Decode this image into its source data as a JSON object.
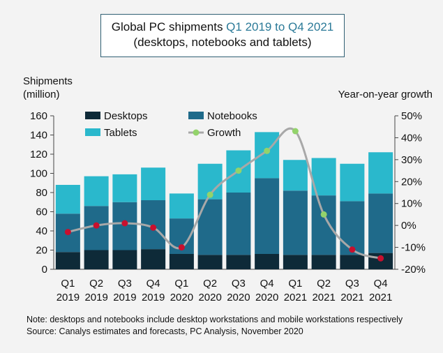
{
  "title": {
    "prefix": "Global PC shipments ",
    "highlight": "Q1 2019 to Q4 2021",
    "subtitle": "(desktops, notebooks and tablets)"
  },
  "notes": {
    "line1": "Note: desktops and notebooks include desktop workstations and mobile workstations respectively",
    "line2": "Source: Canalys estimates and forecasts, PC Analysis, November 2020"
  },
  "chart_data": {
    "type": "bar",
    "stacked": true,
    "categories": [
      [
        "Q1",
        "2019"
      ],
      [
        "Q2",
        "2019"
      ],
      [
        "Q3",
        "2019"
      ],
      [
        "Q4",
        "2019"
      ],
      [
        "Q1",
        "2020"
      ],
      [
        "Q2",
        "2020"
      ],
      [
        "Q3",
        "2020"
      ],
      [
        "Q4",
        "2020"
      ],
      [
        "Q1",
        "2021"
      ],
      [
        "Q2",
        "2021"
      ],
      [
        "Q3",
        "2021"
      ],
      [
        "Q4",
        "2021"
      ]
    ],
    "series": [
      {
        "name": "Desktops",
        "color": "#0e2a38",
        "values": [
          18,
          20,
          20,
          21,
          16,
          15,
          15,
          16,
          15,
          15,
          15,
          17
        ]
      },
      {
        "name": "Notebooks",
        "color": "#1f6a8a",
        "values": [
          40,
          46,
          50,
          51,
          37,
          58,
          65,
          79,
          67,
          62,
          56,
          62
        ]
      },
      {
        "name": "Tablets",
        "color": "#2ab8cc",
        "values": [
          30,
          31,
          29,
          34,
          26,
          37,
          44,
          48,
          32,
          39,
          39,
          43
        ]
      }
    ],
    "growth": {
      "name": "Growth",
      "line_color": "#a8a8a8",
      "marker_actual": "#c8102e",
      "marker_forecast": "#93d36b",
      "forecast_indices": [
        5,
        6,
        7,
        8,
        9
      ],
      "values": [
        -3,
        0,
        1,
        -1,
        -10,
        14,
        25,
        34,
        43,
        5,
        -11,
        -15
      ]
    },
    "ylabel_left": [
      "Shipments",
      "(million)"
    ],
    "ylabel_right": "Year-on-year growth",
    "ylim_left": [
      0,
      160
    ],
    "yticks_left": [
      "0",
      "20",
      "40",
      "60",
      "80",
      "100",
      "120",
      "140",
      "160"
    ],
    "ylim_right": [
      -20,
      50
    ],
    "yticks_right": [
      "-20%",
      "-10%",
      "0%",
      "10%",
      "20%",
      "30%",
      "40%",
      "50%"
    ],
    "legend": [
      "Desktops",
      "Notebooks",
      "Tablets",
      "Growth"
    ],
    "legend_position": "top-left"
  }
}
